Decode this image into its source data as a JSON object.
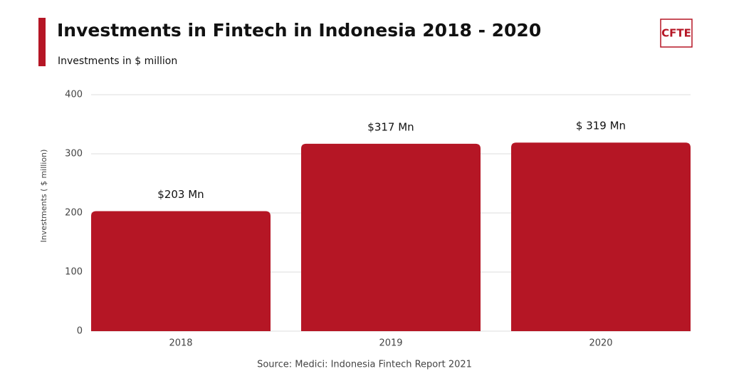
{
  "chart_data": {
    "type": "bar",
    "title": "Investments in Fintech in Indonesia 2018 - 2020",
    "subtitle": "Investments in $ million",
    "logo": "CFTE",
    "y_label": "Investments ( $ million)",
    "source": "Source: Medici: Indonesia Fintech Report 2021",
    "categories": [
      "2018",
      "2019",
      "2020"
    ],
    "values": [
      203,
      317,
      319
    ],
    "value_labels": [
      "$203 Mn",
      "$317 Mn",
      "$ 319 Mn"
    ],
    "color": "#b51625",
    "ylim": [
      0,
      400
    ],
    "yticks": [
      0,
      100,
      200,
      300,
      400
    ],
    "grid": true
  }
}
